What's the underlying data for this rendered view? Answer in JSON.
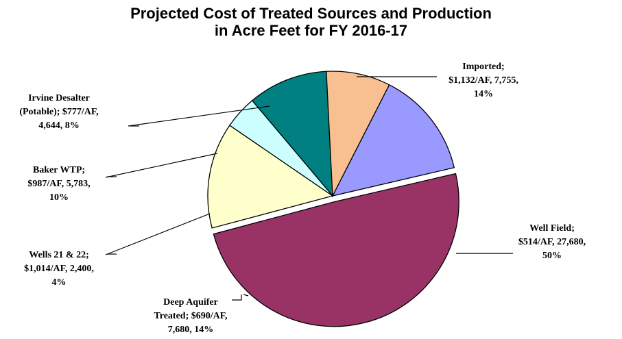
{
  "chart_data": {
    "type": "pie",
    "title": [
      "Projected Cost of Treated Sources and Production",
      "in Acre Feet for FY 2016-17"
    ],
    "slices": [
      {
        "name": "Imported",
        "cost": "$1,132/AF",
        "value": 7755,
        "percent": 14,
        "color": "#9999ff",
        "label_lines": [
          "Imported;",
          "$1,132/AF, 7,755,",
          "14%"
        ]
      },
      {
        "name": "Well Field",
        "cost": "$514/AF",
        "value": 27680,
        "percent": 50,
        "color": "#993366",
        "exploded": true,
        "label_lines": [
          "Well Field;",
          "$514/AF, 27,680,",
          "50%"
        ]
      },
      {
        "name": "Deep Aquifer Treated",
        "cost": "$690/AF",
        "value": 7680,
        "percent": 14,
        "color": "#ffffcc",
        "label_lines": [
          "Deep Aquifer",
          "Treated; $690/AF,",
          "7,680, 14%"
        ]
      },
      {
        "name": "Wells 21 & 22",
        "cost": "$1,014/AF",
        "value": 2400,
        "percent": 4,
        "color": "#ccffff",
        "label_lines": [
          "Wells 21 & 22;",
          "$1,014/AF, 2,400,",
          "4%"
        ]
      },
      {
        "name": "Baker WTP",
        "cost": "$987/AF",
        "value": 5783,
        "percent": 10,
        "color": "#008080",
        "label_lines": [
          "Baker WTP;",
          "$987/AF, 5,783,",
          "10%"
        ]
      },
      {
        "name": "Irvine Desalter (Potable)",
        "cost": "$777/AF",
        "value": 4644,
        "percent": 8,
        "color": "#f8c090",
        "label_lines": [
          "Irvine Desalter",
          "(Potable); $777/AF,",
          "4,644, 8%"
        ]
      }
    ],
    "start_angle_deg": 27,
    "direction": "clockwise"
  }
}
